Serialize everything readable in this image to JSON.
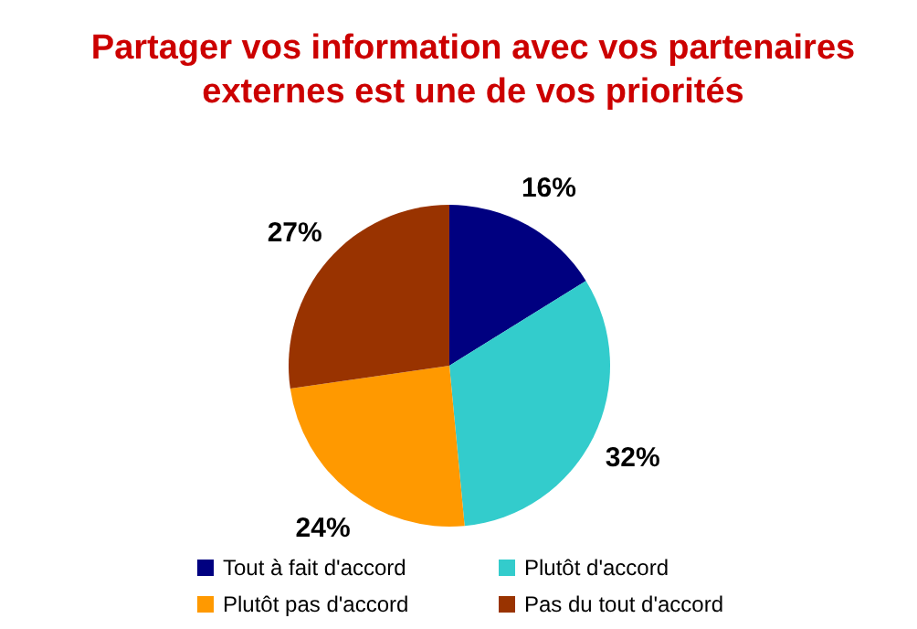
{
  "chart_data": {
    "type": "pie",
    "title": "Partager vos information avec vos partenaires externes est une de vos priorités",
    "categories": [
      "Tout à fait d'accord",
      "Plutôt d'accord",
      "Plutôt pas d'accord",
      "Pas du tout d'accord"
    ],
    "values": [
      16,
      32,
      24,
      27
    ],
    "colors": [
      "#000080",
      "#33cccc",
      "#ff9900",
      "#993300"
    ],
    "value_labels": [
      "16%",
      "32%",
      "24%",
      "27%"
    ],
    "legend": "bottom"
  }
}
